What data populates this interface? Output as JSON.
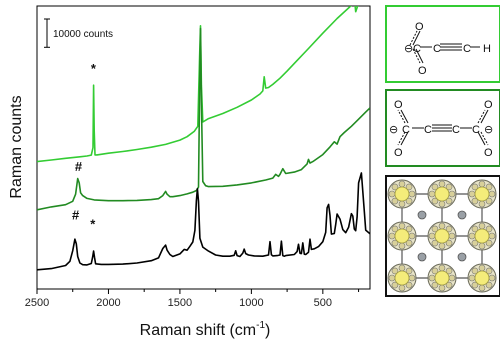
{
  "chart_data": {
    "type": "line",
    "xlabel": "Raman shift (cm",
    "xlabel_sup": "-1",
    "xlabel_close": ")",
    "ylabel": "Raman counts",
    "xlim": [
      2500,
      170
    ],
    "ylim": [
      0,
      100000
    ],
    "x_reversed": true,
    "x_ticks": [
      2500,
      2000,
      1500,
      1000,
      500
    ],
    "scale_bar": {
      "label": "10000 counts",
      "value": 10000
    },
    "annotations": [
      {
        "symbol": "*",
        "series": "light",
        "x": 2105,
        "y": 76400
      },
      {
        "symbol": "#",
        "series": "mid",
        "x": 2210,
        "y": 41700
      },
      {
        "symbol": "#",
        "series": "black",
        "x": 2230,
        "y": 24600
      },
      {
        "symbol": "*",
        "series": "black",
        "x": 2110,
        "y": 21400
      }
    ],
    "series": [
      {
        "key": "light",
        "color": "#33cc33",
        "x": [
          2500,
          2400,
          2300,
          2200,
          2150,
          2120,
          2108,
          2104,
          2100,
          2094,
          2080,
          2000,
          1900,
          1800,
          1700,
          1600,
          1500,
          1450,
          1400,
          1375,
          1362,
          1356,
          1350,
          1340,
          1300,
          1200,
          1100,
          1000,
          940,
          920,
          910,
          900,
          880,
          850,
          800,
          750,
          700,
          600,
          500,
          400,
          300,
          280,
          270,
          250,
          200,
          170
        ],
        "y": [
          45000,
          45600,
          46200,
          46700,
          47000,
          47300,
          50000,
          72000,
          56000,
          47400,
          47400,
          48000,
          48600,
          49300,
          50100,
          51100,
          52600,
          53800,
          55700,
          57500,
          82000,
          93000,
          72000,
          59000,
          60200,
          62000,
          64200,
          66800,
          68900,
          70000,
          75000,
          71000,
          71200,
          72300,
          74500,
          77000,
          79700,
          85000,
          90400,
          95600,
          100200,
          103000,
          98000,
          101000,
          102500,
          104000
        ]
      },
      {
        "key": "mid",
        "color": "#228b22",
        "x": [
          2500,
          2400,
          2300,
          2250,
          2230,
          2215,
          2205,
          2195,
          2180,
          2150,
          2100,
          2000,
          1900,
          1800,
          1700,
          1650,
          1620,
          1600,
          1590,
          1570,
          1550,
          1500,
          1450,
          1410,
          1385,
          1370,
          1362,
          1356,
          1350,
          1340,
          1320,
          1300,
          1200,
          1100,
          1000,
          900,
          850,
          830,
          810,
          800,
          780,
          760,
          700,
          650,
          610,
          600,
          590,
          570,
          500,
          450,
          420,
          400,
          380,
          350,
          300,
          250,
          200,
          170
        ],
        "y": [
          28000,
          29000,
          29800,
          31000,
          33500,
          39000,
          37500,
          34000,
          33000,
          32000,
          31500,
          31200,
          31200,
          31300,
          31600,
          31900,
          33000,
          34500,
          33500,
          32600,
          32600,
          33000,
          33600,
          34200,
          34800,
          36000,
          70000,
          92000,
          66000,
          38000,
          36500,
          36200,
          36300,
          36800,
          37500,
          38500,
          39200,
          40500,
          39800,
          40500,
          42500,
          40800,
          41300,
          42200,
          44200,
          45800,
          44500,
          45000,
          47500,
          50200,
          52000,
          51200,
          53800,
          55300,
          57500,
          60000,
          62500,
          64000
        ]
      },
      {
        "key": "black",
        "color": "#000000",
        "x": [
          2500,
          2400,
          2300,
          2270,
          2250,
          2235,
          2225,
          2215,
          2200,
          2180,
          2150,
          2120,
          2110,
          2104,
          2098,
          2090,
          2050,
          2000,
          1900,
          1800,
          1700,
          1650,
          1620,
          1600,
          1590,
          1570,
          1550,
          1500,
          1470,
          1450,
          1430,
          1410,
          1395,
          1385,
          1378,
          1370,
          1360,
          1340,
          1300,
          1250,
          1200,
          1150,
          1120,
          1110,
          1100,
          1080,
          1060,
          1050,
          1040,
          1020,
          980,
          920,
          880,
          870,
          860,
          850,
          820,
          800,
          790,
          780,
          770,
          760,
          700,
          680,
          670,
          660,
          650,
          640,
          630,
          620,
          600,
          590,
          580,
          560,
          530,
          500,
          480,
          470,
          460,
          450,
          440,
          420,
          410,
          400,
          380,
          360,
          340,
          320,
          300,
          290,
          280,
          270,
          260,
          250,
          230,
          210,
          200,
          170
        ],
        "y": [
          6800,
          7200,
          8300,
          9800,
          13500,
          17600,
          16000,
          11500,
          9200,
          8600,
          8500,
          9000,
          11400,
          13400,
          11200,
          8900,
          8700,
          8700,
          8800,
          9200,
          10000,
          11000,
          14300,
          15500,
          13700,
          12200,
          11500,
          12400,
          14000,
          13700,
          15100,
          16600,
          20700,
          31300,
          35400,
          31000,
          17900,
          14800,
          13400,
          12000,
          11600,
          11600,
          11900,
          13500,
          11800,
          11500,
          12700,
          14100,
          12500,
          12000,
          11700,
          11600,
          12000,
          16700,
          12100,
          11700,
          11800,
          12000,
          16900,
          11800,
          11600,
          11800,
          12200,
          13200,
          15800,
          12600,
          12500,
          16300,
          12300,
          12200,
          13000,
          17600,
          14000,
          14200,
          15000,
          16700,
          20000,
          28700,
          29900,
          26000,
          19400,
          19600,
          22800,
          26500,
          24700,
          21000,
          19900,
          21800,
          26600,
          25800,
          21200,
          20600,
          25400,
          37500,
          41000,
          27500,
          20800,
          19500
        ]
      }
    ]
  },
  "legend_panels": [
    {
      "key": "ethynecarboxylate",
      "end_label": "H",
      "minus_label": "⊖"
    },
    {
      "key": "acetylenedicarboxylate",
      "minus_label": "⊖"
    },
    {
      "key": "crystal-structure"
    }
  ]
}
